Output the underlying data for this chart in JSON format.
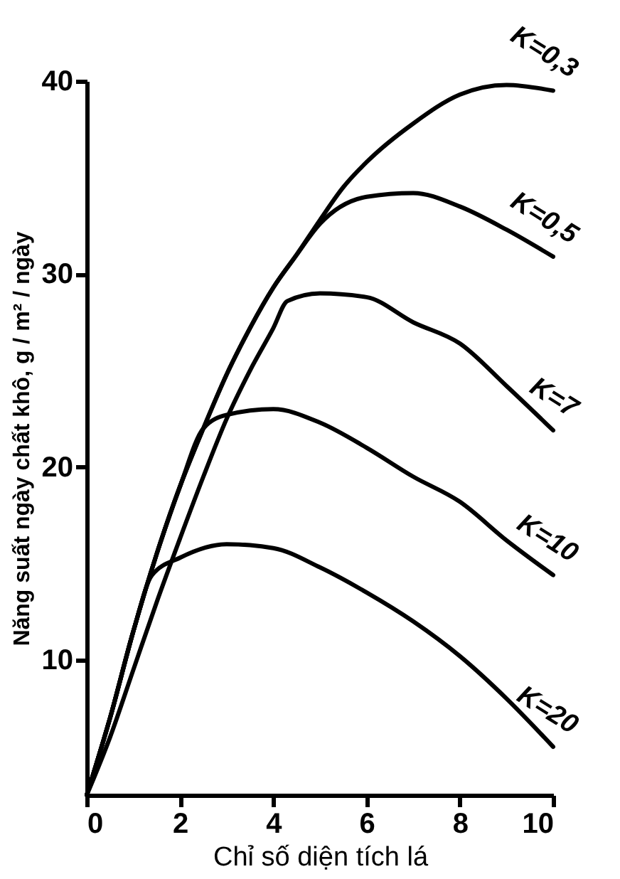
{
  "chart_data": {
    "type": "line",
    "xlabel": "Chỉ số diện tích lá",
    "ylabel": "Năng suất ngày chất khô, g / m² / ngày",
    "xlim": [
      0,
      10
    ],
    "ylim": [
      3,
      40
    ],
    "xticks": [
      0,
      2,
      4,
      6,
      8,
      10
    ],
    "yticks": [
      10,
      20,
      30,
      40
    ],
    "grid": false,
    "legend": false,
    "marker": "none",
    "line_style": "solid",
    "series": [
      {
        "name": "K=0,3",
        "color": "#000000",
        "x": [
          0,
          0.5,
          1,
          1.5,
          2,
          2.5,
          3,
          3.5,
          4,
          4.5,
          5,
          5.5,
          6,
          7,
          8,
          9,
          10
        ],
        "values": [
          3,
          7,
          11.5,
          15.5,
          19,
          22,
          24.8,
          27.2,
          29.3,
          31,
          32.8,
          34.5,
          35.8,
          37.8,
          39.3,
          39.8,
          39.5
        ]
      },
      {
        "name": "K=0,5",
        "color": "#000000",
        "x": [
          0,
          0.5,
          1,
          1.5,
          2,
          2.5,
          3,
          3.5,
          4,
          4.5,
          5,
          6,
          7,
          8,
          9,
          10
        ],
        "values": [
          3,
          7,
          11.5,
          15.5,
          19,
          22,
          24.8,
          27.2,
          29.3,
          31,
          32.6,
          34,
          34.2,
          33.5,
          32.3,
          30.9
        ]
      },
      {
        "name": "K=7",
        "color": "#000000",
        "x": [
          0,
          0.5,
          1,
          1.5,
          2,
          2.5,
          3,
          3.5,
          4,
          4.3,
          5,
          6,
          7,
          8,
          9,
          10
        ],
        "values": [
          3,
          6,
          9.5,
          13,
          16.3,
          19.5,
          22.5,
          25,
          27.2,
          28.6,
          29,
          28.8,
          27.5,
          26.4,
          24.2,
          21.9
        ]
      },
      {
        "name": "K=10",
        "color": "#000000",
        "x": [
          0,
          0.5,
          1,
          1.5,
          2,
          2.5,
          3,
          4,
          5,
          6,
          7,
          8,
          9,
          10
        ],
        "values": [
          3,
          7,
          11.5,
          15.5,
          19,
          22,
          22.7,
          23,
          22.3,
          21,
          19.5,
          18.2,
          16.2,
          14.4
        ]
      },
      {
        "name": "K=20",
        "color": "#000000",
        "x": [
          0,
          0.5,
          1,
          1.4,
          2,
          3,
          4,
          5,
          6,
          7,
          8,
          9,
          10
        ],
        "values": [
          3,
          7,
          11.5,
          14.4,
          15.3,
          16,
          15.8,
          14.8,
          13.5,
          12,
          10.2,
          8,
          5.5
        ]
      }
    ]
  }
}
